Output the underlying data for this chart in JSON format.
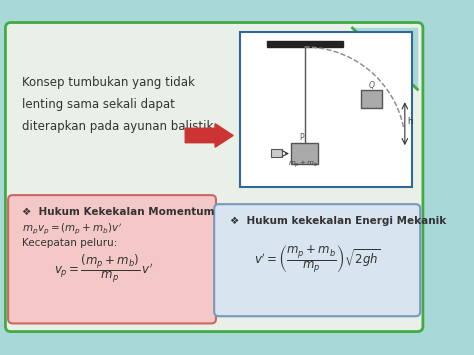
{
  "bg_color": "#a8d8d8",
  "main_bg": "#e8f0e8",
  "main_border": "#44aa44",
  "title_text": "Konsep tumbukan yang tidak\nlenting sama sekali dapat\nditerapkan pada ayunan balistik.",
  "left_box_bg": "#f5c8c8",
  "left_box_border": "#cc6666",
  "left_title": "❖  Hukum Kekekalan Momentum",
  "left_line1": "$m_p v_p = (m_p + m_b)v'$",
  "left_line2": "Kecepatan peluru:",
  "left_formula": "$v_p = \\dfrac{(m_p + m_b)}{m_p}\\, v'$",
  "right_box_bg": "#d8e4f0",
  "right_box_border": "#7799bb",
  "right_title": "❖  Hukum kekekalan Energi Mekanik",
  "right_formula": "$v'= \\left(\\dfrac{m_p + m_b}{m_p}\\right)\\sqrt{2gh}$",
  "diagram_bg": "#ffffff",
  "diagram_border": "#336699",
  "arrow_color": "#cc3333"
}
